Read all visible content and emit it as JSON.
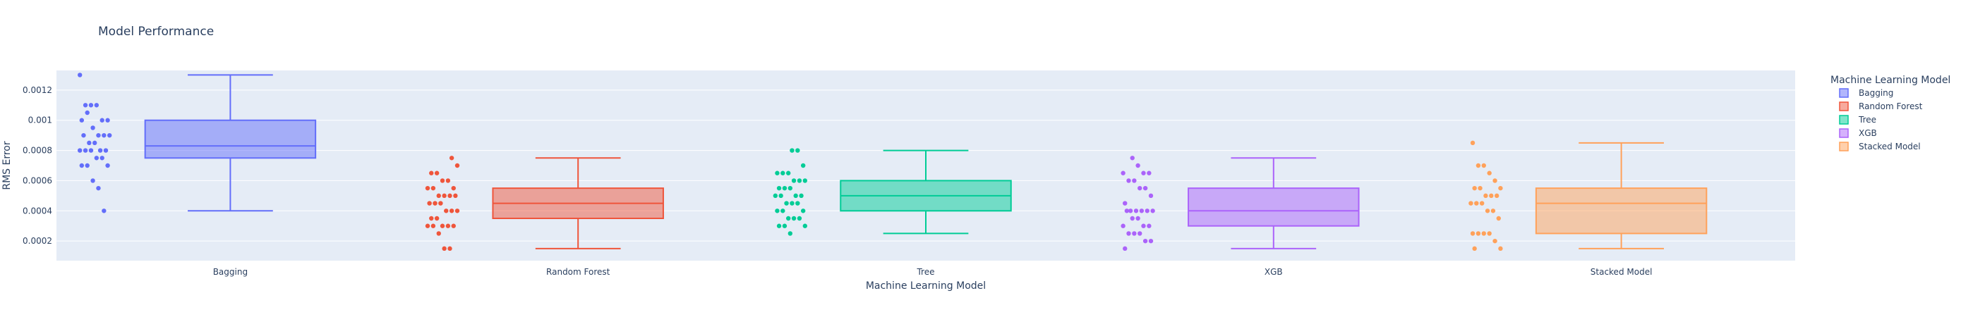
{
  "chart_data": {
    "type": "box",
    "title": "Model Performance",
    "xlabel": "Machine Learning Model",
    "ylabel": "RMS Error",
    "ylim": [
      7e-05,
      0.00133
    ],
    "y_ticks": [
      "0.0002",
      "0.0004",
      "0.0006",
      "0.0008",
      "0.001",
      "0.0012"
    ],
    "y_tick_values": [
      0.0002,
      0.0004,
      0.0006,
      0.0008,
      0.001,
      0.0012
    ],
    "grid": true,
    "legend_title": "Machine Learning Model",
    "legend_position": "right",
    "categories": [
      "Bagging",
      "Random Forest",
      "Tree",
      "XGB",
      "Stacked Model"
    ],
    "series": [
      {
        "name": "Bagging",
        "color": "#636efa",
        "box": {
          "min": 0.0004,
          "q1": 0.00075,
          "median": 0.00083,
          "q3": 0.001,
          "max": 0.0013
        },
        "points": [
          0.0013,
          0.0011,
          0.0011,
          0.0011,
          0.001,
          0.001,
          0.001,
          0.00105,
          0.00095,
          0.0009,
          0.0009,
          0.0009,
          0.0009,
          0.00085,
          0.00085,
          0.0008,
          0.0008,
          0.0008,
          0.0008,
          0.0008,
          0.00075,
          0.00075,
          0.0007,
          0.0007,
          0.0007,
          0.0006,
          0.00055,
          0.0004
        ]
      },
      {
        "name": "Random Forest",
        "color": "#ef553b",
        "box": {
          "min": 0.00015,
          "q1": 0.00035,
          "median": 0.00045,
          "q3": 0.00055,
          "max": 0.00075
        },
        "points": [
          0.00075,
          0.0007,
          0.00065,
          0.00065,
          0.0006,
          0.0006,
          0.00055,
          0.00055,
          0.00055,
          0.0005,
          0.0005,
          0.0005,
          0.0005,
          0.00045,
          0.00045,
          0.00045,
          0.0004,
          0.0004,
          0.0004,
          0.00035,
          0.00035,
          0.0003,
          0.0003,
          0.0003,
          0.0003,
          0.0003,
          0.00025,
          0.00015,
          0.00015
        ]
      },
      {
        "name": "Tree",
        "color": "#00cc96",
        "box": {
          "min": 0.00025,
          "q1": 0.0004,
          "median": 0.0005,
          "q3": 0.0006,
          "max": 0.0008
        },
        "points": [
          0.0008,
          0.0008,
          0.0007,
          0.00065,
          0.00065,
          0.00065,
          0.0006,
          0.0006,
          0.0006,
          0.00055,
          0.00055,
          0.00055,
          0.0005,
          0.0005,
          0.0005,
          0.0005,
          0.00045,
          0.00045,
          0.00045,
          0.0004,
          0.0004,
          0.0004,
          0.00035,
          0.00035,
          0.00035,
          0.0003,
          0.0003,
          0.0003,
          0.00025
        ]
      },
      {
        "name": "XGB",
        "color": "#ab63fa",
        "box": {
          "min": 0.00015,
          "q1": 0.0003,
          "median": 0.0004,
          "q3": 0.00055,
          "max": 0.00075
        },
        "points": [
          0.00075,
          0.0007,
          0.00065,
          0.00065,
          0.00065,
          0.0006,
          0.0006,
          0.00055,
          0.00055,
          0.0005,
          0.00045,
          0.0004,
          0.0004,
          0.0004,
          0.0004,
          0.0004,
          0.0004,
          0.00035,
          0.00035,
          0.0003,
          0.0003,
          0.0003,
          0.00025,
          0.00025,
          0.00025,
          0.0002,
          0.0002,
          0.00015
        ]
      },
      {
        "name": "Stacked Model",
        "color": "#ffa15a",
        "box": {
          "min": 0.00015,
          "q1": 0.00025,
          "median": 0.00045,
          "q3": 0.00055,
          "max": 0.00085
        },
        "points": [
          0.00085,
          0.0007,
          0.0007,
          0.00065,
          0.0006,
          0.00055,
          0.00055,
          0.00055,
          0.0005,
          0.0005,
          0.0005,
          0.00045,
          0.00045,
          0.00045,
          0.0004,
          0.0004,
          0.00035,
          0.00025,
          0.00025,
          0.00025,
          0.00025,
          0.0002,
          0.00015,
          0.00015
        ]
      }
    ]
  }
}
